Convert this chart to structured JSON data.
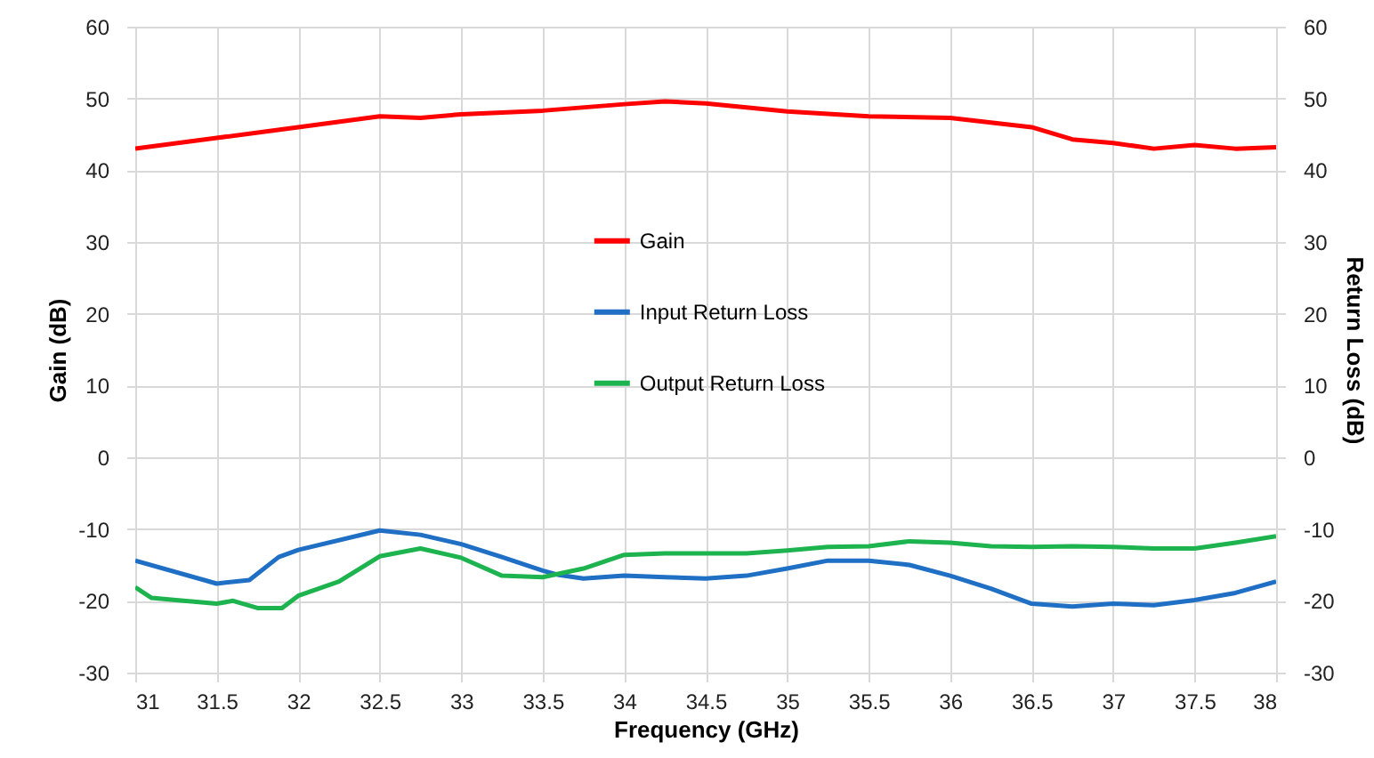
{
  "chart_data": {
    "type": "line",
    "xlabel": "Frequency (GHz)",
    "ylabel": "Gain (dB)",
    "y2label": "Return Loss (dB)",
    "xlim": [
      31,
      38
    ],
    "xticks": [
      31,
      31.5,
      32,
      32.5,
      33,
      33.5,
      34,
      34.5,
      35,
      35.5,
      36,
      36.5,
      37,
      37.5,
      38
    ],
    "ylim": [
      -30,
      60
    ],
    "yticks": [
      -30,
      -20,
      -10,
      0,
      10,
      20,
      30,
      40,
      50,
      60
    ],
    "y2lim": [
      -30,
      60
    ],
    "y2ticks": [
      -30,
      -20,
      -10,
      0,
      10,
      20,
      30,
      40,
      50,
      60
    ],
    "grid": true,
    "legend": "top",
    "line_style": "solid",
    "series": [
      {
        "name": "Gain",
        "color": "#ff0000",
        "x": [
          31,
          31.5,
          32,
          32.5,
          32.75,
          33,
          33.5,
          34,
          34.25,
          34.5,
          35,
          35.5,
          36,
          36.5,
          36.75,
          37,
          37.25,
          37.5,
          37.75,
          38
        ],
        "values": [
          43,
          44.5,
          46,
          47.5,
          47.3,
          47.8,
          48.3,
          49.2,
          49.6,
          49.3,
          48.2,
          47.5,
          47.3,
          46,
          44.3,
          43.8,
          43,
          43.5,
          43,
          43.2
        ]
      },
      {
        "name": "Input Return Loss",
        "color": "#1f6fc5",
        "axis": "y2",
        "x": [
          31,
          31.5,
          31.7,
          31.88,
          32,
          32.5,
          32.75,
          33,
          33.25,
          33.5,
          33.6,
          33.75,
          34,
          34.25,
          34.5,
          34.75,
          35,
          35.25,
          35.5,
          35.75,
          36,
          36.25,
          36.5,
          36.75,
          37,
          37.25,
          37.5,
          37.75,
          38
        ],
        "values": [
          -14.4,
          -17.6,
          -17.1,
          -13.9,
          -12.9,
          -10.2,
          -10.8,
          -12.1,
          -13.9,
          -15.8,
          -16.4,
          -16.9,
          -16.5,
          -16.7,
          -16.9,
          -16.5,
          -15.5,
          -14.4,
          -14.4,
          -15,
          -16.5,
          -18.3,
          -20.4,
          -20.8,
          -20.4,
          -20.6,
          -19.9,
          -18.9,
          -17.3
        ]
      },
      {
        "name": "Output Return Loss",
        "color": "#1db34e",
        "axis": "y2",
        "x": [
          31,
          31.1,
          31.25,
          31.5,
          31.6,
          31.75,
          31.9,
          32,
          32.25,
          32.5,
          32.75,
          33,
          33.25,
          33.5,
          33.75,
          34,
          34.25,
          34.5,
          34.75,
          35,
          35.25,
          35.5,
          35.75,
          36,
          36.25,
          36.5,
          36.75,
          37,
          37.25,
          37.5,
          37.75,
          38
        ],
        "values": [
          -18.1,
          -19.6,
          -19.9,
          -20.4,
          -20,
          -21,
          -21,
          -19.3,
          -17.3,
          -13.8,
          -12.7,
          -14,
          -16.5,
          -16.7,
          -15.5,
          -13.6,
          -13.4,
          -13.4,
          -13.4,
          -13,
          -12.5,
          -12.4,
          -11.7,
          -11.9,
          -12.4,
          -12.5,
          -12.4,
          -12.5,
          -12.7,
          -12.7,
          -11.9,
          -11
        ]
      }
    ]
  }
}
